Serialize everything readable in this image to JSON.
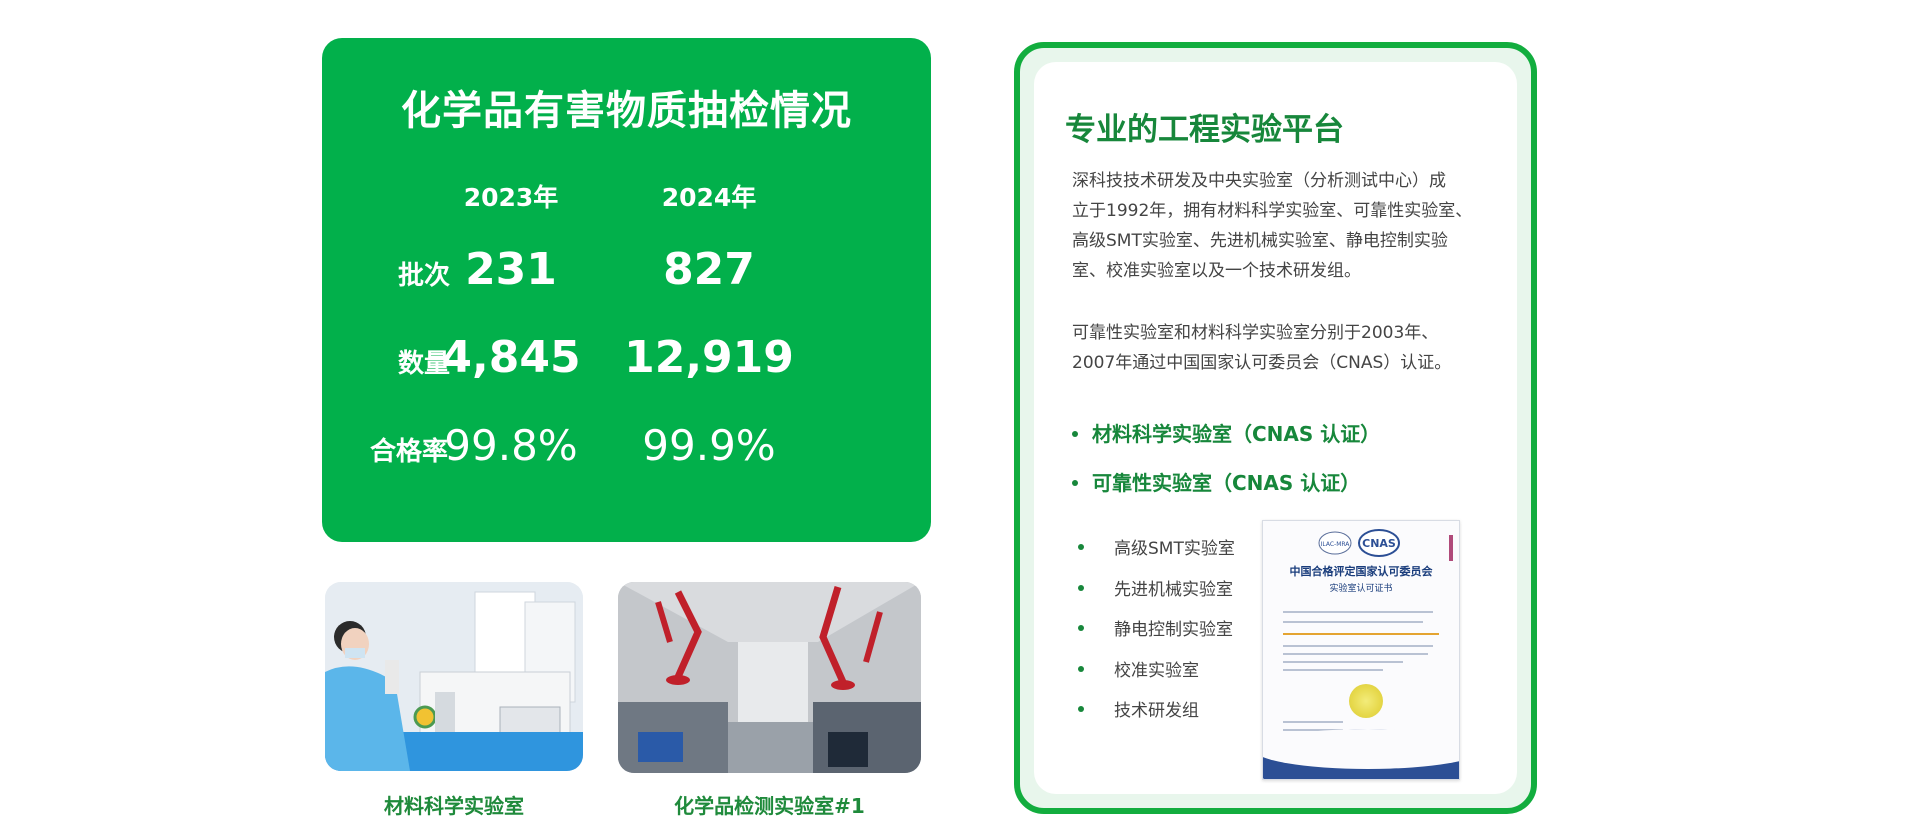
{
  "stats": {
    "title": "化学品有害物质抽检情况",
    "years": [
      "2023年",
      "2024年"
    ],
    "rows": [
      {
        "label": "批次",
        "values": [
          "231",
          "827"
        ]
      },
      {
        "label": "数量",
        "values": [
          "4,845",
          "12,919"
        ]
      },
      {
        "label": "合格率",
        "values": [
          "99.8%",
          "99.9%"
        ]
      }
    ]
  },
  "photos": [
    {
      "caption": "材料科学实验室"
    },
    {
      "caption": "化学品检测实验室#1"
    }
  ],
  "lab": {
    "title": "专业的工程实验平台",
    "paragraph1": [
      "深科技技术研发及中央实验室（分析测试中心）成",
      "立于1992年，拥有材料科学实验室、可靠性实验室、",
      "高级SMT实验室、先进机械实验室、静电控制实验",
      "室、校准实验室以及一个技术研发组。"
    ],
    "paragraph2": [
      "可靠性实验室和材料科学实验室分别于2003年、",
      "2007年通过中国国家认可委员会（CNAS）认证。"
    ],
    "certified": [
      "材料科学实验室（CNAS 认证）",
      "可靠性实验室（CNAS 认证）"
    ],
    "others": [
      "高级SMT实验室",
      "先进机械实验室",
      "静电控制实验室",
      "校准实验室",
      "技术研发组"
    ]
  },
  "certificate": {
    "logo_left": "ILAC-MRA",
    "logo_right": "CNAS",
    "heading": "中国合格评定国家认可委员会",
    "subheading": "实验室认可证书"
  },
  "colors": {
    "brand_green": "#02b04b",
    "title_green": "#17873b",
    "border_green": "#12ad3e"
  }
}
